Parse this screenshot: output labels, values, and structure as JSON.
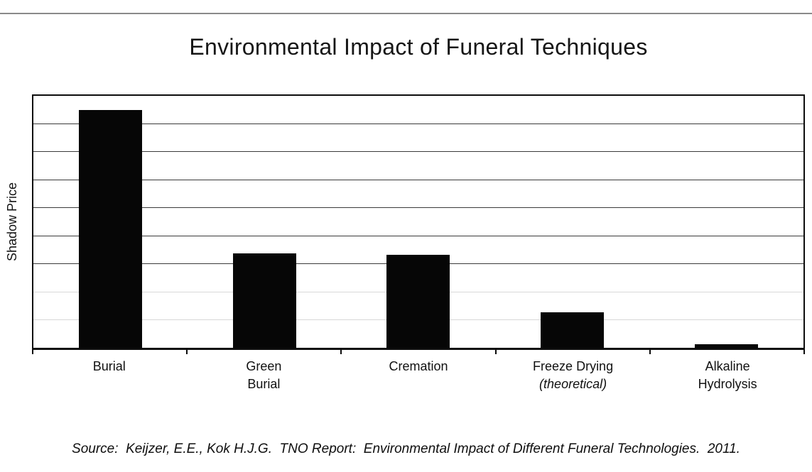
{
  "page": {
    "background": "#ffffff",
    "top_rule_color": "#8a8a8a"
  },
  "chart": {
    "title": "Environmental Impact of Funeral Techniques",
    "y_axis_label": "Shadow Price",
    "source_note": "Source:  Keijzer, E.E., Kok H.J.G.  TNO Report:  Environmental Impact of Different Funeral Technologies.  2011.",
    "bar_color": "#060606",
    "frame_color": "#0d0d0d",
    "gridline_dark_color": "#3a3a3a",
    "gridline_light_color": "#d8d8d8"
  },
  "chart_render": {
    "gridline_shades": [
      "dark",
      "dark",
      "dark",
      "dark",
      "dark",
      "dark",
      "light",
      "light"
    ],
    "tick_count": 6
  },
  "x_labels": [
    {
      "line1": "Burial",
      "line2": "",
      "line2_italic": false
    },
    {
      "line1": "Green",
      "line2": "Burial",
      "line2_italic": false
    },
    {
      "line1": "Cremation",
      "line2": "",
      "line2_italic": false
    },
    {
      "line1": "Freeze Drying",
      "line2": "(theoretical)",
      "line2_italic": true
    },
    {
      "line1": "Alkaline",
      "line2": "Hydrolysis",
      "line2_italic": false
    }
  ],
  "chart_data": {
    "type": "bar",
    "title": "Environmental Impact of Funeral Techniques",
    "xlabel": "",
    "ylabel": "Shadow Price",
    "categories": [
      "Burial",
      "Green Burial",
      "Cremation",
      "Freeze Drying (theoretical)",
      "Alkaline Hydrolysis"
    ],
    "values": [
      8.5,
      3.37,
      3.32,
      1.28,
      0.13
    ],
    "ylim": [
      0,
      9
    ],
    "y_ticks_labeled": false,
    "gridlines": "horizontal every 1 unit, unlabeled; upper six dark, lower two light",
    "legend": "none",
    "bar_color": "black",
    "annotations": [
      "second line of Freeze Drying label, (theoretical), is italic"
    ],
    "source": "Source:  Keijzer, E.E., Kok H.J.G.  TNO Report:  Environmental Impact of Different Funeral Technologies.  2011."
  }
}
